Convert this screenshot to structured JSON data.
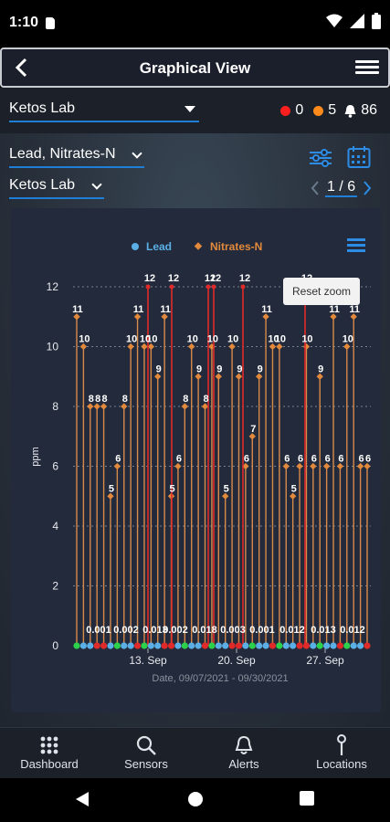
{
  "status_bar": {
    "time": "1:10"
  },
  "header": {
    "title": "Graphical View"
  },
  "lab_row": {
    "selected_lab": "Ketos Lab",
    "alarms": [
      {
        "color": "#ff1f1f",
        "count": "0"
      },
      {
        "color": "#ff8a1c",
        "count": "5"
      }
    ],
    "notifications": "86"
  },
  "filters": {
    "parameters": "Lead, Nitrates-N",
    "lab": "Ketos Lab",
    "page_current": "1",
    "page_total": "6",
    "page_label": "1 / 6"
  },
  "chart_data": {
    "type": "line",
    "legend": [
      "Lead",
      "Nitrates-N"
    ],
    "legend_colors": {
      "Lead": "#5ab0e6",
      "Nitrates-N": "#e2893c"
    },
    "ylabel": "ppm",
    "xlabel": "Date, 09/07/2021 - 09/30/2021",
    "ylim": [
      0,
      12
    ],
    "yticks": [
      "0",
      "2",
      "4",
      "6",
      "8",
      "10",
      "12"
    ],
    "xticks": [
      "13. Sep",
      "20. Sep",
      "27. Sep"
    ],
    "reset_zoom": "Reset zoom",
    "nitrates_values": [
      11,
      10,
      8,
      8,
      8,
      5,
      6,
      8,
      10,
      11,
      10,
      10,
      9,
      11,
      5,
      6,
      8,
      10,
      9,
      8,
      10,
      9,
      5,
      10,
      9,
      6,
      7,
      9,
      11,
      10,
      10,
      6,
      5,
      6,
      10,
      6,
      9,
      6,
      11,
      6,
      10,
      11,
      6,
      6
    ],
    "high_spikes": [
      {
        "label": "12",
        "series": "Lead"
      },
      {
        "label": "12",
        "series": "Lead"
      },
      {
        "label": "12",
        "series": "Lead"
      },
      {
        "label": "12",
        "series": "Lead"
      },
      {
        "label": "12",
        "series": "Lead"
      },
      {
        "label": "12",
        "series": "Lead"
      }
    ],
    "lead_labels": [
      "0.001",
      "0.002",
      "0.013",
      "0.002",
      "0.018",
      "0.003",
      "0.001",
      "0.012",
      "0.013",
      "0.012"
    ]
  },
  "bottom_nav": [
    {
      "label": "Dashboard",
      "icon": "grid-icon"
    },
    {
      "label": "Sensors",
      "icon": "search-icon"
    },
    {
      "label": "Alerts",
      "icon": "bell-icon"
    },
    {
      "label": "Locations",
      "icon": "pin-icon"
    }
  ]
}
